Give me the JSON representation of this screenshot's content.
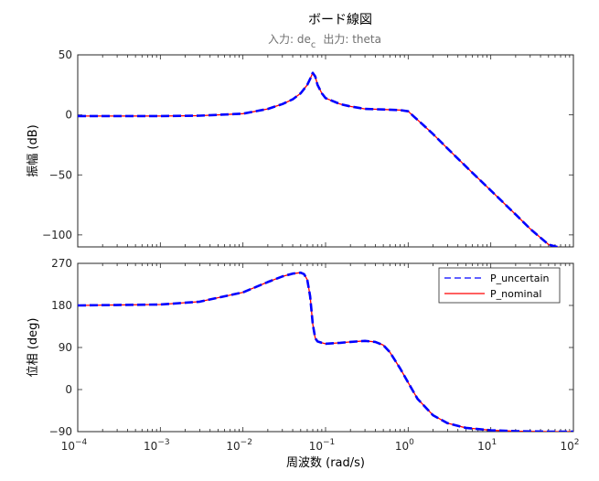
{
  "title": "ボード線図",
  "subtitle": {
    "input_label": "入力: de",
    "input_subscript": "c",
    "output_label": "出力: theta"
  },
  "legend": {
    "uncertain": "P_uncertain",
    "nominal": "P_nominal"
  },
  "colors": {
    "uncertain": "#0000ff",
    "nominal": "#ff0000",
    "axis": "#262626",
    "grid": "#d0d0d0",
    "subtitle": "#707070"
  },
  "chart_data": [
    {
      "type": "line",
      "id": "magnitude",
      "ylabel": "振幅 (dB)",
      "xscale": "log",
      "xlim": [
        0.0001,
        100
      ],
      "ylim": [
        -110,
        50
      ],
      "yticks": [
        -100,
        -50,
        0,
        50
      ],
      "ytick_labels": [
        "−100",
        "−50",
        "0",
        "50"
      ],
      "grid": false,
      "series": [
        {
          "name": "P_nominal",
          "style": "solid",
          "x": [
            0.0001,
            0.0003,
            0.001,
            0.003,
            0.005,
            0.01,
            0.02,
            0.03,
            0.04,
            0.05,
            0.06,
            0.065,
            0.07,
            0.075,
            0.08,
            0.09,
            0.1,
            0.15,
            0.2,
            0.3,
            0.5,
            0.8,
            1.0,
            1.2,
            1.5,
            2,
            3,
            5,
            10,
            20,
            30,
            50,
            80
          ],
          "y": [
            -1,
            -1,
            -1,
            -0.7,
            0,
            1,
            5,
            9,
            13,
            18,
            25,
            30,
            35,
            32,
            25,
            18,
            14,
            9,
            7,
            5,
            4.5,
            4,
            3,
            -2,
            -8,
            -16,
            -28,
            -43,
            -63,
            -83,
            -95,
            -108,
            -112
          ]
        },
        {
          "name": "P_uncertain",
          "style": "dashed",
          "x": [
            0.0001,
            0.0003,
            0.001,
            0.003,
            0.005,
            0.01,
            0.02,
            0.03,
            0.04,
            0.05,
            0.06,
            0.065,
            0.07,
            0.075,
            0.08,
            0.09,
            0.1,
            0.15,
            0.2,
            0.3,
            0.5,
            0.8,
            1.0,
            1.2,
            1.5,
            2,
            3,
            5,
            10,
            20,
            30,
            50,
            80
          ],
          "y": [
            -1,
            -1,
            -1,
            -0.7,
            0,
            1,
            5,
            9,
            13,
            18,
            25,
            30,
            35,
            32,
            25,
            18,
            14,
            9,
            7,
            5,
            4.5,
            4,
            3,
            -2,
            -8,
            -16,
            -28,
            -43,
            -63,
            -83,
            -95,
            -108,
            -112
          ]
        }
      ]
    },
    {
      "type": "line",
      "id": "phase",
      "ylabel": "位相 (deg)",
      "xlabel": "周波数 (rad/s)",
      "xscale": "log",
      "xlim": [
        0.0001,
        100
      ],
      "xtick_base": "10",
      "xtick_exponents": [
        "−4",
        "−3",
        "−2",
        "−1",
        "0",
        "1",
        "2"
      ],
      "ylim": [
        -90,
        270
      ],
      "yticks": [
        -90,
        0,
        90,
        180,
        270
      ],
      "ytick_labels": [
        "−90",
        "0",
        "90",
        "180",
        "270"
      ],
      "grid": false,
      "legend_position": "top-right",
      "series": [
        {
          "name": "P_nominal",
          "style": "solid",
          "x": [
            0.0001,
            0.001,
            0.003,
            0.01,
            0.02,
            0.03,
            0.04,
            0.05,
            0.055,
            0.06,
            0.065,
            0.07,
            0.075,
            0.08,
            0.09,
            0.1,
            0.15,
            0.2,
            0.3,
            0.4,
            0.5,
            0.6,
            0.8,
            1.0,
            1.3,
            2,
            3,
            5,
            10,
            20,
            50,
            100
          ],
          "y": [
            180,
            182,
            188,
            208,
            230,
            242,
            248,
            250,
            247,
            235,
            200,
            140,
            110,
            103,
            100,
            98,
            100,
            102,
            104,
            102,
            95,
            80,
            45,
            15,
            -20,
            -55,
            -72,
            -82,
            -87,
            -89,
            -90,
            -90
          ]
        },
        {
          "name": "P_uncertain",
          "style": "dashed",
          "x": [
            0.0001,
            0.001,
            0.003,
            0.01,
            0.02,
            0.03,
            0.04,
            0.05,
            0.055,
            0.06,
            0.065,
            0.07,
            0.075,
            0.08,
            0.09,
            0.1,
            0.15,
            0.2,
            0.3,
            0.4,
            0.5,
            0.6,
            0.8,
            1.0,
            1.3,
            2,
            3,
            5,
            10,
            20,
            50,
            100
          ],
          "y": [
            180,
            182,
            188,
            208,
            230,
            242,
            248,
            250,
            247,
            235,
            200,
            140,
            110,
            103,
            100,
            98,
            100,
            102,
            104,
            102,
            95,
            80,
            45,
            15,
            -20,
            -55,
            -72,
            -82,
            -87,
            -89,
            -90,
            -90
          ]
        }
      ]
    }
  ]
}
